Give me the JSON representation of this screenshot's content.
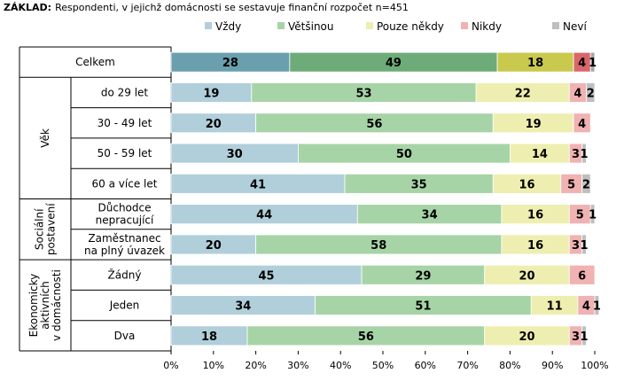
{
  "chart_data": {
    "type": "bar",
    "orientation": "horizontal",
    "stacked": true,
    "base_label": "ZÁKLAD:",
    "base_text": "Respondenti, v jejichž domácnosti se sestavuje finanční rozpočet n=451",
    "series": [
      {
        "name": "Vždy",
        "color": "#b1cfda"
      },
      {
        "name": "Většinou",
        "color": "#a7d4a6"
      },
      {
        "name": "Pouze někdy",
        "color": "#eeeeb0"
      },
      {
        "name": "Nikdy",
        "color": "#f0b2b2"
      },
      {
        "name": "Neví",
        "color": "#bfbfbf"
      }
    ],
    "total_colors": [
      "#6a9fae",
      "#6dac78",
      "#c9c94e",
      "#d9676a",
      "#a6a6a6"
    ],
    "rows": [
      {
        "label": "Celkem",
        "values": [
          28,
          49,
          18,
          4,
          1
        ],
        "value_labels": [
          "28",
          "49",
          "18",
          "4",
          "1"
        ],
        "highlight": true
      },
      {
        "label": "do 29 let",
        "group": "Věk",
        "values": [
          19,
          53,
          22,
          4,
          2
        ],
        "value_labels": [
          "19",
          "53",
          "22",
          "4",
          "2"
        ]
      },
      {
        "label": "30 - 49 let",
        "group": "Věk",
        "values": [
          20,
          56,
          19,
          4,
          0
        ],
        "value_labels": [
          "20",
          "56",
          "19",
          "4",
          ""
        ]
      },
      {
        "label": "50 - 59 let",
        "group": "Věk",
        "values": [
          30,
          50,
          14,
          3,
          1
        ],
        "value_labels": [
          "30",
          "50",
          "14",
          "3",
          "1"
        ]
      },
      {
        "label": "60 a více let",
        "group": "Věk",
        "values": [
          41,
          35,
          16,
          5,
          2
        ],
        "value_labels": [
          "41",
          "35",
          "16",
          "5",
          "2"
        ]
      },
      {
        "label": "Důchodce nepracující",
        "group": "Sociální postavení",
        "values": [
          44,
          34,
          16,
          5,
          1
        ],
        "value_labels": [
          "44",
          "34",
          "16",
          "5",
          "1"
        ]
      },
      {
        "label": "Zaměstnanec na plný úvazek",
        "group": "Sociální postavení",
        "values": [
          20,
          58,
          16,
          3,
          1
        ],
        "value_labels": [
          "20",
          "58",
          "16",
          "3",
          "1"
        ]
      },
      {
        "label": "Žádný",
        "group": "Ekonomicky aktivních v domácnosti",
        "values": [
          45,
          29,
          20,
          6,
          0
        ],
        "value_labels": [
          "45",
          "29",
          "20",
          "6",
          ""
        ]
      },
      {
        "label": "Jeden",
        "group": "Ekonomicky aktivních v domácnosti",
        "values": [
          34,
          51,
          11,
          4,
          1
        ],
        "value_labels": [
          "34",
          "51",
          "11",
          "4",
          "1"
        ]
      },
      {
        "label": "Dva",
        "group": "Ekonomicky aktivních v domácnosti",
        "values": [
          18,
          56,
          20,
          3,
          1
        ],
        "value_labels": [
          "18",
          "56",
          "20",
          "3",
          "1"
        ]
      }
    ],
    "groups": [
      {
        "name": "Věk",
        "lines": [
          "Věk"
        ]
      },
      {
        "name": "Sociální postavení",
        "lines": [
          "Sociální",
          "postavení"
        ]
      },
      {
        "name": "Ekonomicky aktivních v domácnosti",
        "lines": [
          "Ekonomicky",
          "aktivních",
          "v domácnosti"
        ]
      }
    ],
    "xlim": [
      0,
      100
    ],
    "x_ticks": [
      "0%",
      "10%",
      "20%",
      "30%",
      "40%",
      "50%",
      "60%",
      "70%",
      "80%",
      "90%",
      "100%"
    ],
    "legend_position": "top"
  }
}
